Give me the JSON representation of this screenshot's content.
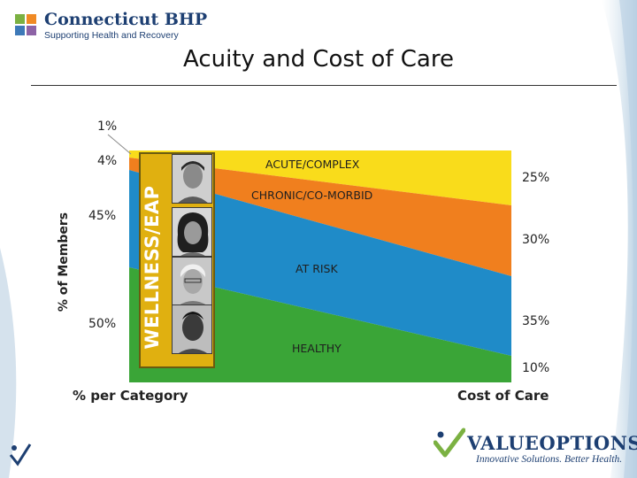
{
  "header": {
    "logo_name": "Connecticut BHP",
    "logo_tagline": "Supporting Health and Recovery"
  },
  "page_title": "Acuity and Cost of Care",
  "chart": {
    "y_axis_label": "% of Members",
    "x_axis_left_label": "% per Category",
    "x_axis_right_label": "Cost of Care",
    "wellness_label": "WELLNESS/EAP",
    "members_percent_labels": [
      "1%",
      "4%",
      "45%",
      "50%"
    ],
    "cost_percent_labels": [
      "25%",
      "30%",
      "35%",
      "10%"
    ]
  },
  "chart_data": {
    "type": "area",
    "categories": [
      "ACUTE/COMPLEX",
      "CHRONIC/CO-MORBID",
      "AT RISK",
      "HEALTHY"
    ],
    "members_percent": [
      1,
      4,
      45,
      50
    ],
    "cost_of_care_percent": [
      25,
      30,
      35,
      10
    ],
    "colors": [
      "#f9dc1b",
      "#f07f1e",
      "#1f8bc8",
      "#3aa537"
    ]
  },
  "footer": {
    "brand_name": "VALUEOPTIONS",
    "brand_mark": "®",
    "brand_tagline": "Innovative Solutions. Better Health."
  },
  "colors": {
    "navy": "#1d3f72",
    "yellow": "#f9dc1b",
    "orange": "#f07f1e",
    "blue": "#1f8bc8",
    "green": "#3aa537",
    "wellness_gold": "#e0b010"
  },
  "icons": [
    "connecticut-bhp-logo-icon",
    "valueoptions-checkmark-icon",
    "corner-arrow-icon",
    "pointer-line-icon"
  ]
}
